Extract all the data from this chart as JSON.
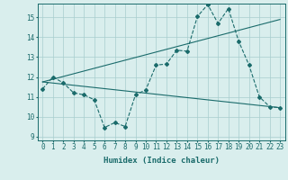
{
  "xlabel": "Humidex (Indice chaleur)",
  "bg_color": "#d9eeed",
  "line_color": "#1a6b6b",
  "grid_color": "#a8cece",
  "xlim": [
    -0.5,
    23.5
  ],
  "ylim": [
    8.8,
    15.7
  ],
  "yticks": [
    9,
    10,
    11,
    12,
    13,
    14,
    15
  ],
  "xticks": [
    0,
    1,
    2,
    3,
    4,
    5,
    6,
    7,
    8,
    9,
    10,
    11,
    12,
    13,
    14,
    15,
    16,
    17,
    18,
    19,
    20,
    21,
    22,
    23
  ],
  "main_x": [
    0,
    1,
    2,
    3,
    4,
    5,
    6,
    7,
    8,
    9,
    10,
    11,
    12,
    13,
    14,
    15,
    16,
    17,
    18,
    19,
    20,
    21,
    22,
    23
  ],
  "main_y": [
    11.4,
    12.0,
    11.7,
    11.2,
    11.1,
    10.85,
    9.45,
    9.7,
    9.5,
    11.1,
    11.35,
    12.6,
    12.65,
    13.35,
    13.3,
    15.05,
    15.65,
    14.7,
    15.45,
    13.8,
    12.6,
    11.0,
    10.5,
    10.45
  ],
  "upper_trend_x": [
    0,
    23
  ],
  "upper_trend_y": [
    11.75,
    14.9
  ],
  "lower_trend_x": [
    0,
    23
  ],
  "lower_trend_y": [
    11.75,
    10.45
  ],
  "fontsize_label": 6.5,
  "fontsize_tick": 5.5
}
